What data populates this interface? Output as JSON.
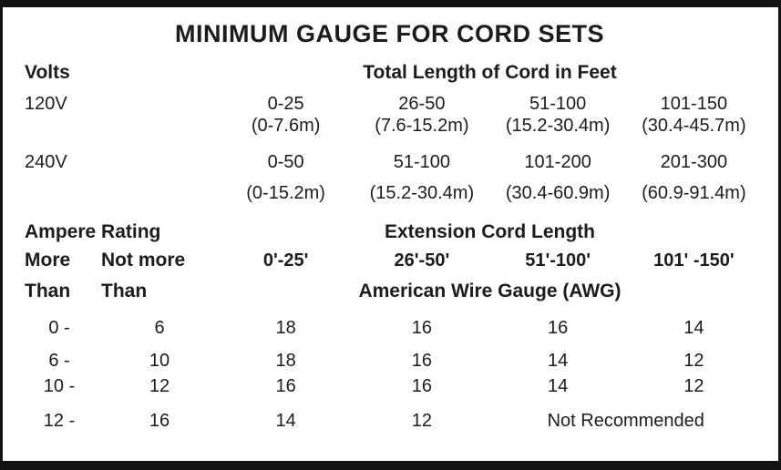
{
  "title": "MINIMUM GAUGE FOR CORD SETS",
  "volts": {
    "label": "Volts",
    "length_header": "Total Length of Cord in Feet",
    "rows": [
      {
        "volts": "120V",
        "ranges": [
          "0-25",
          "26-50",
          "51-100",
          "101-150"
        ],
        "metric": [
          "(0-7.6m)",
          "(7.6-15.2m)",
          "(15.2-30.4m)",
          "(30.4-45.7m)"
        ]
      },
      {
        "volts": "240V",
        "ranges": [
          "0-50",
          "51-100",
          "101-200",
          "201-300"
        ],
        "metric": [
          "(0-15.2m)",
          "(15.2-30.4m)",
          "(30.4-60.9m)",
          "(60.9-91.4m)"
        ]
      }
    ]
  },
  "ampere": {
    "label": "Ampere Rating",
    "extension_header": "Extension Cord Length",
    "more_line1": "More",
    "more_line2": "Than",
    "not_more_line1": "Not more",
    "not_more_line2": "Than",
    "cord_lengths": [
      "0'-25'",
      "26'-50'",
      "51'-100'",
      "101' -150'"
    ],
    "awg_header": "American Wire Gauge (AWG)",
    "rows": [
      {
        "more": "0 -",
        "not_more": "6",
        "values": [
          "18",
          "16",
          "16",
          "14"
        ]
      },
      {
        "more": "6 -",
        "not_more": "10",
        "values": [
          "18",
          "16",
          "14",
          "12"
        ]
      },
      {
        "more": "10 -",
        "not_more": "12",
        "values": [
          "16",
          "16",
          "14",
          "12"
        ]
      },
      {
        "more": "12 -",
        "not_more": "16",
        "values": [
          "14",
          "12"
        ],
        "note": "Not Recommended"
      }
    ]
  }
}
